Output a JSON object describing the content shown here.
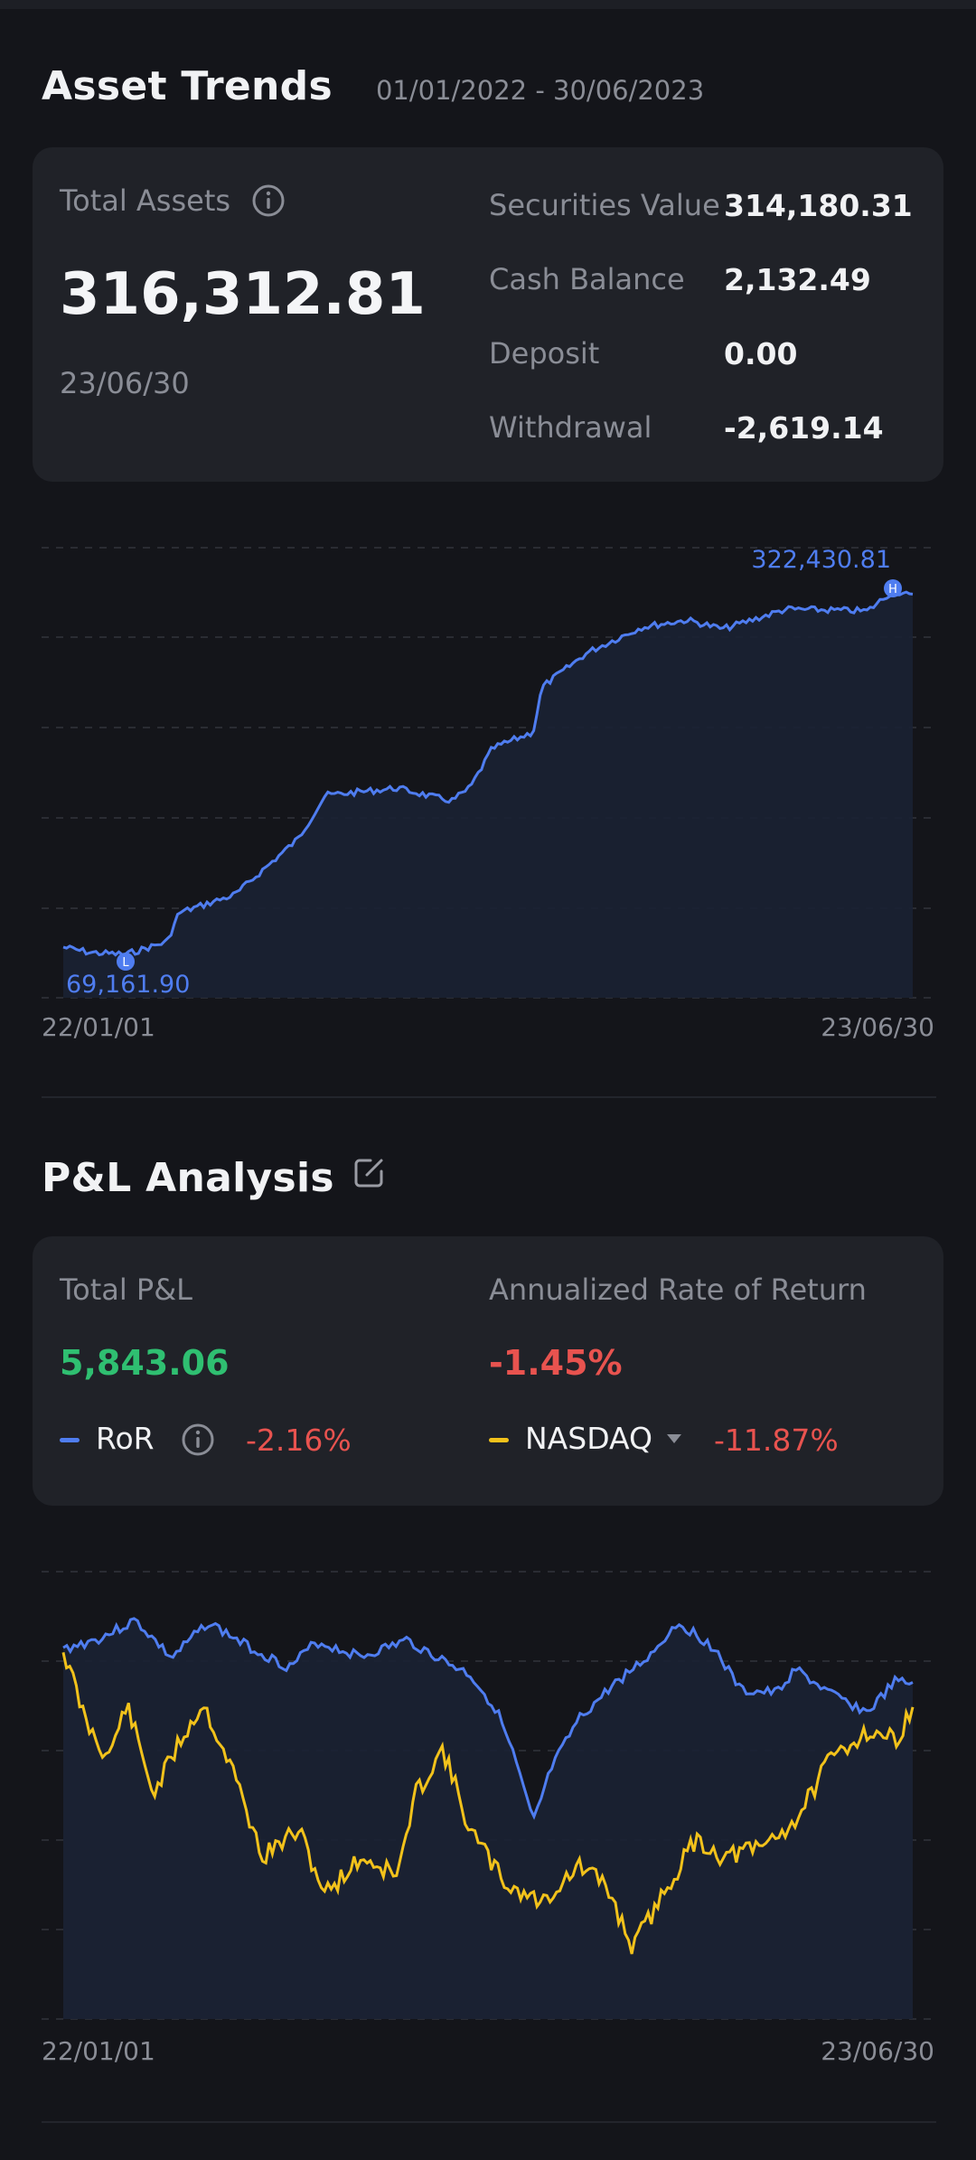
{
  "asset_trends": {
    "title": "Asset Trends",
    "range": "01/01/2022 - 30/06/2023",
    "total_assets_label": "Total Assets",
    "total_assets_value": "316,312.81",
    "date": "23/06/30",
    "rows": [
      {
        "label": "Securities Value",
        "value": "314,180.31"
      },
      {
        "label": "Cash Balance",
        "value": "2,132.49"
      },
      {
        "label": "Deposit",
        "value": "0.00"
      },
      {
        "label": "Withdrawal",
        "value": "-2,619.14"
      }
    ],
    "chart": {
      "high_label": "322,430.81",
      "high_marker": "H",
      "low_label": "69,161.90",
      "low_marker": "L",
      "x_start": "22/01/01",
      "x_end": "23/06/30"
    }
  },
  "pl_analysis": {
    "title": "P&L Analysis",
    "total_pl_label": "Total P&L",
    "total_pl_value": "5,843.06",
    "annualized_label": "Annualized Rate of Return",
    "annualized_value": "-1.45%",
    "ror_label": "RoR",
    "ror_value": "-2.16%",
    "benchmark_label": "NASDAQ",
    "benchmark_value": "-11.87%",
    "chart": {
      "x_start": "22/01/01",
      "x_end": "23/06/30"
    }
  },
  "colors": {
    "accent_blue": "#4f7df0",
    "accent_yellow": "#f2c21b",
    "positive": "#2fbf71",
    "negative": "#e8534f"
  },
  "chart_data": [
    {
      "type": "line",
      "x": [
        "22/01/01",
        "23/06/30"
      ],
      "series": [
        {
          "values": [
            69161.9,
            322430.81
          ]
        }
      ],
      "annotations": [
        "322,430.81",
        "69,161.90"
      ]
    },
    {
      "type": "line",
      "x": [
        "22/01/01",
        "23/06/30"
      ],
      "series": [
        {
          "name": "RoR",
          "values": [
            0,
            -2.16
          ]
        },
        {
          "name": "NASDAQ",
          "values": [
            0,
            -11.87
          ]
        }
      ]
    }
  ]
}
